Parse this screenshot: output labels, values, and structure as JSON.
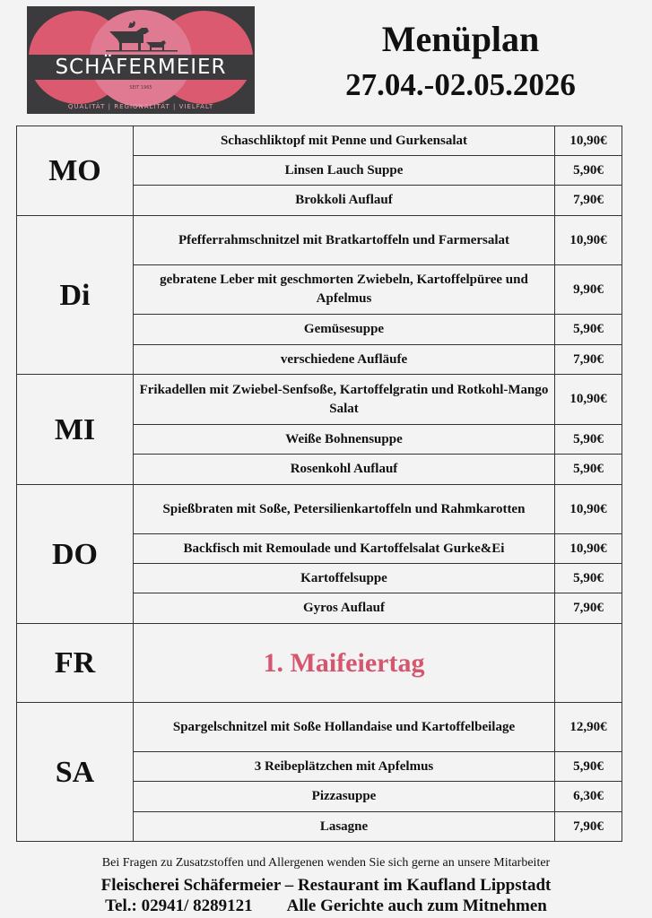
{
  "logo": {
    "brand": "SCHÄFERMEIER",
    "since": "SEIT 1965",
    "tagline": "QUALITÄT | REGIONALITÄT | VIELFALT",
    "colors": {
      "background": "#3b3a3c",
      "circle": "#dc5a6f",
      "center": "#e07a92"
    }
  },
  "header": {
    "title": "Menüplan",
    "date_range": "27.04.-02.05.2026"
  },
  "accent_color": "#d4566f",
  "days": [
    {
      "day": "MO",
      "items": [
        {
          "dish": "Schaschliktopf mit Penne und Gurkensalat",
          "price": "10,90€"
        },
        {
          "dish": "Linsen Lauch Suppe",
          "price": "5,90€"
        },
        {
          "dish": "Brokkoli Auflauf",
          "price": "7,90€"
        }
      ]
    },
    {
      "day": "Di",
      "items": [
        {
          "dish": "Pfefferrahmschnitzel mit Bratkartoffeln und Farmersalat",
          "price": "10,90€"
        },
        {
          "dish": "gebratene Leber mit geschmorten Zwiebeln, Kartoffelpüree und Apfelmus",
          "price": "9,90€"
        },
        {
          "dish": "Gemüsesuppe",
          "price": "5,90€"
        },
        {
          "dish": "verschiedene Aufläufe",
          "price": "7,90€"
        }
      ]
    },
    {
      "day": "MI",
      "items": [
        {
          "dish": "Frikadellen mit Zwiebel-Senfsoße, Kartoffelgratin und Rotkohl-Mango Salat",
          "price": "10,90€"
        },
        {
          "dish": "Weiße Bohnensuppe",
          "price": "5,90€"
        },
        {
          "dish": "Rosenkohl Auflauf",
          "price": "5,90€"
        }
      ]
    },
    {
      "day": "DO",
      "items": [
        {
          "dish": "Spießbraten mit Soße, Petersilienkartoffeln und Rahmkarotten",
          "price": "10,90€"
        },
        {
          "dish": "Backfisch mit Remoulade und Kartoffelsalat Gurke&Ei",
          "price": "10,90€"
        },
        {
          "dish": "Kartoffelsuppe",
          "price": "5,90€"
        },
        {
          "dish": "Gyros Auflauf",
          "price": "7,90€"
        }
      ]
    },
    {
      "day": "FR",
      "holiday": "1. Maifeiertag"
    },
    {
      "day": "SA",
      "items": [
        {
          "dish": "Spargelschnitzel mit Soße Hollandaise und Kartoffelbeilage",
          "price": "12,90€"
        },
        {
          "dish": "3 Reibeplätzchen mit Apfelmus",
          "price": "5,90€"
        },
        {
          "dish": "Pizzasuppe",
          "price": "6,30€"
        },
        {
          "dish": "Lasagne",
          "price": "7,90€"
        }
      ]
    }
  ],
  "footer": {
    "allergen_note": "Bei Fragen zu Zusatzstoffen und Allergenen wenden Sie sich gerne an unsere Mitarbeiter",
    "business": "Fleischerei Schäfermeier – Restaurant im Kaufland Lippstadt",
    "phone": "Tel.: 02941/ 8289121",
    "takeaway": "Alle Gerichte auch zum Mitnehmen"
  }
}
